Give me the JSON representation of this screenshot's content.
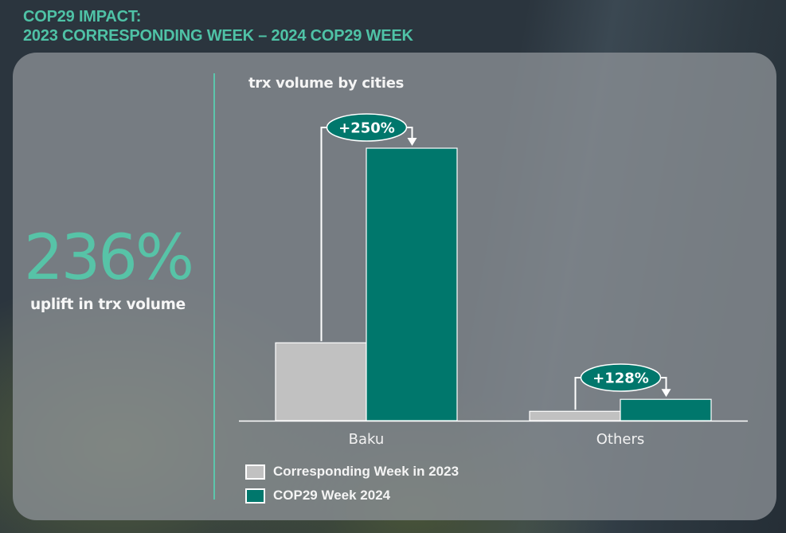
{
  "header": {
    "title_line1": "COP29 IMPACT:",
    "title_line2": "2023 CORRESPONDING WEEK – 2024 COP29 WEEK"
  },
  "kpi": {
    "value": "236%",
    "label": "uplift in trx volume"
  },
  "colors": {
    "accent": "#57c3a7",
    "series_2023": "#c1c1c1",
    "series_2024": "#00776c"
  },
  "chart_data": {
    "type": "bar",
    "title": "trx volume by cities",
    "xlabel": "",
    "ylabel": "",
    "categories": [
      "Baku",
      "Others"
    ],
    "series": [
      {
        "name": "Corresponding Week in 2023",
        "values": [
          100,
          12
        ]
      },
      {
        "name": "COP29 Week 2024",
        "values": [
          350,
          27.4
        ]
      }
    ],
    "annotations": [
      {
        "category": "Baku",
        "label": "+250%"
      },
      {
        "category": "Others",
        "label": "+128%"
      }
    ],
    "ylim": [
      0,
      350
    ],
    "grid": false,
    "legend_position": "bottom-left"
  }
}
